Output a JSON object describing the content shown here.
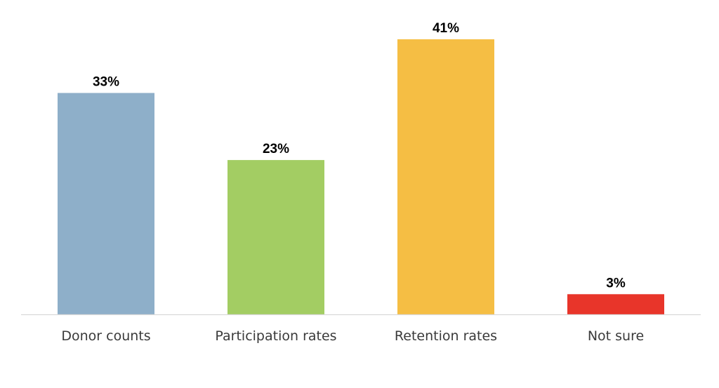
{
  "chart_data": {
    "type": "bar",
    "title": "",
    "xlabel": "",
    "ylabel": "",
    "categories": [
      "Donor counts",
      "Participation rates",
      "Retention rates",
      "Not sure"
    ],
    "values": [
      33,
      23,
      41,
      3
    ],
    "value_labels": [
      "33%",
      "23%",
      "41%",
      "3%"
    ],
    "colors": [
      "#8eafc9",
      "#a3cd63",
      "#f5be44",
      "#e8352a"
    ],
    "ylim": [
      0,
      41
    ],
    "grid": false,
    "legend": "none"
  }
}
